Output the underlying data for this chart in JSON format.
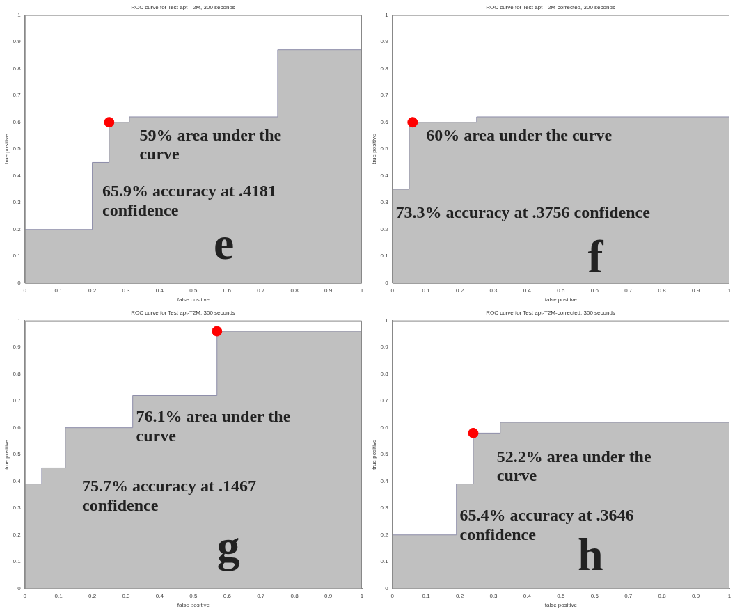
{
  "chart_data": [
    {
      "type": "area",
      "title": "ROC curve for Test apt-T2M, 300 seconds",
      "xlabel": "false positive",
      "ylabel": "true positive",
      "xlim": [
        0,
        1
      ],
      "ylim": [
        0,
        1
      ],
      "xticks": [
        0,
        0.1,
        0.2,
        0.3,
        0.4,
        0.5,
        0.6,
        0.7,
        0.8,
        0.9,
        1
      ],
      "yticks": [
        0,
        0.1,
        0.2,
        0.3,
        0.4,
        0.5,
        0.6,
        0.7,
        0.8,
        0.9,
        1
      ],
      "series": [
        {
          "type": "area",
          "color": "#c0c0c0",
          "x": [
            0,
            0.2,
            0.2,
            0.25,
            0.25,
            0.31,
            0.31,
            0.75,
            0.75,
            1
          ],
          "values": [
            0.2,
            0.2,
            0.45,
            0.45,
            0.6,
            0.6,
            0.62,
            0.62,
            0.87,
            0.87
          ]
        },
        {
          "type": "scatter",
          "marker": "circle",
          "color": "#ff0000",
          "x": [
            0.25
          ],
          "values": [
            0.6
          ]
        }
      ],
      "annotations": [
        "59% area under the curve",
        "65.9% accuracy at .4181 confidence",
        "e"
      ]
    },
    {
      "type": "area",
      "title": "ROC curve for Test apt-T2M-corrected, 300 seconds",
      "xlabel": "false positive",
      "ylabel": "true positive",
      "xlim": [
        0,
        1
      ],
      "ylim": [
        0,
        1
      ],
      "xticks": [
        0,
        0.1,
        0.2,
        0.3,
        0.4,
        0.5,
        0.6,
        0.7,
        0.8,
        0.9,
        1
      ],
      "yticks": [
        0,
        0.1,
        0.2,
        0.3,
        0.4,
        0.5,
        0.6,
        0.7,
        0.8,
        0.9,
        1
      ],
      "series": [
        {
          "type": "area",
          "color": "#c0c0c0",
          "x": [
            0,
            0.05,
            0.05,
            0.25,
            0.25,
            1
          ],
          "values": [
            0.35,
            0.35,
            0.6,
            0.6,
            0.62,
            0.62
          ]
        },
        {
          "type": "scatter",
          "marker": "circle",
          "color": "#ff0000",
          "x": [
            0.06
          ],
          "values": [
            0.6
          ]
        }
      ],
      "annotations": [
        "60% area under the curve",
        "73.3% accuracy at .3756 confidence",
        "f"
      ]
    },
    {
      "type": "area",
      "title": "ROC curve for Test apt-T2M, 300 seconds",
      "xlabel": "false positive",
      "ylabel": "true positive",
      "xlim": [
        0,
        1
      ],
      "ylim": [
        0,
        1
      ],
      "xticks": [
        0,
        0.1,
        0.2,
        0.3,
        0.4,
        0.5,
        0.6,
        0.7,
        0.8,
        0.9,
        1
      ],
      "yticks": [
        0,
        0.1,
        0.2,
        0.3,
        0.4,
        0.5,
        0.6,
        0.7,
        0.8,
        0.9,
        1
      ],
      "series": [
        {
          "type": "area",
          "color": "#c0c0c0",
          "x": [
            0,
            0.05,
            0.05,
            0.12,
            0.12,
            0.32,
            0.32,
            0.57,
            0.57,
            1
          ],
          "values": [
            0.39,
            0.39,
            0.45,
            0.45,
            0.6,
            0.6,
            0.72,
            0.72,
            0.96,
            0.96
          ]
        },
        {
          "type": "scatter",
          "marker": "circle",
          "color": "#ff0000",
          "x": [
            0.57
          ],
          "values": [
            0.96
          ]
        }
      ],
      "annotations": [
        "76.1% area under the curve",
        "75.7% accuracy at .1467 confidence",
        "g"
      ]
    },
    {
      "type": "area",
      "title": "ROC curve for Test apt-T2M-corrected, 300 seconds",
      "xlabel": "false positive",
      "ylabel": "true positive",
      "xlim": [
        0,
        1
      ],
      "ylim": [
        0,
        1
      ],
      "xticks": [
        0,
        0.1,
        0.2,
        0.3,
        0.4,
        0.5,
        0.6,
        0.7,
        0.8,
        0.9,
        1
      ],
      "yticks": [
        0,
        0.1,
        0.2,
        0.3,
        0.4,
        0.5,
        0.6,
        0.7,
        0.8,
        0.9,
        1
      ],
      "series": [
        {
          "type": "area",
          "color": "#c0c0c0",
          "x": [
            0,
            0.19,
            0.19,
            0.24,
            0.24,
            0.32,
            0.32,
            1
          ],
          "values": [
            0.2,
            0.2,
            0.39,
            0.39,
            0.58,
            0.58,
            0.62,
            0.62
          ]
        },
        {
          "type": "scatter",
          "marker": "circle",
          "color": "#ff0000",
          "x": [
            0.24
          ],
          "values": [
            0.58
          ]
        }
      ],
      "annotations": [
        "52.2% area under the curve",
        "65.4% accuracy at .3646 confidence",
        "h"
      ]
    }
  ]
}
